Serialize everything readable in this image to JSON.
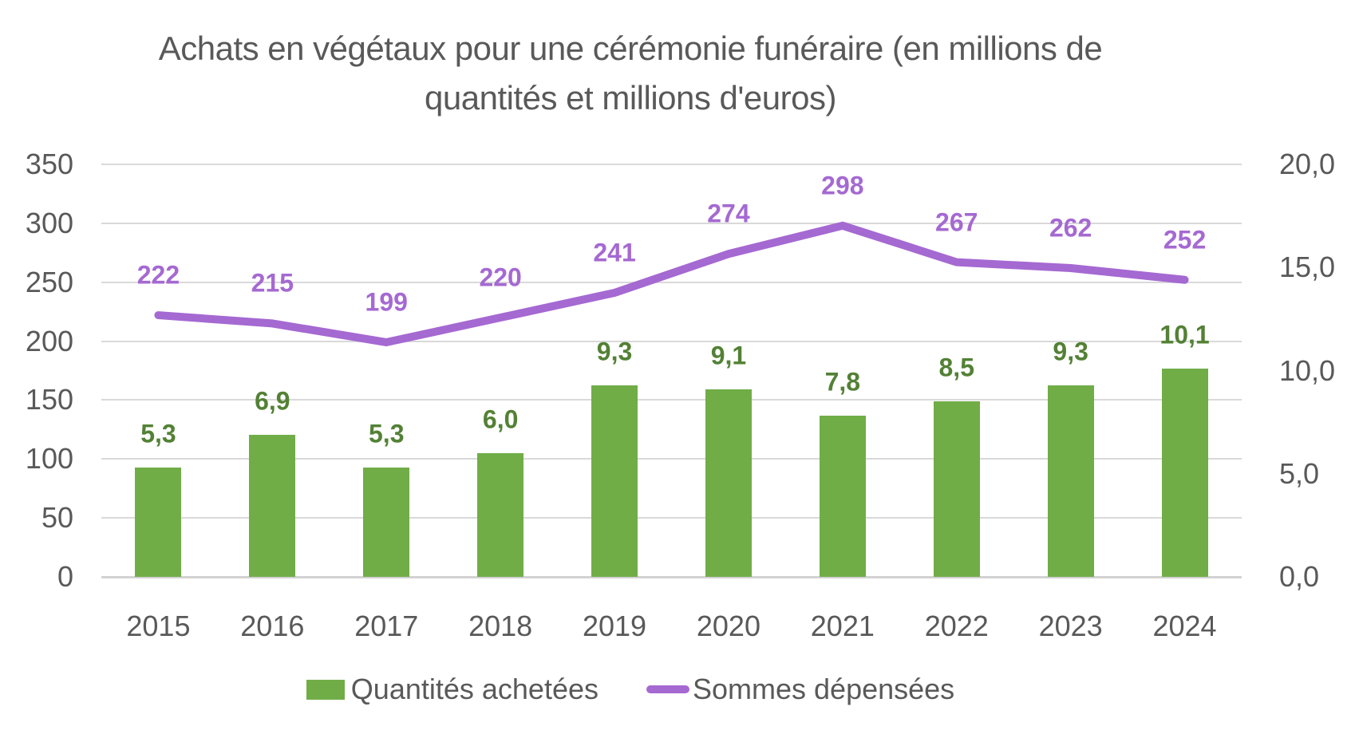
{
  "chart": {
    "title_line1": "Achats en végétaux pour une cérémonie funéraire (en millions de",
    "title_line2": "quantités et millions d'euros)"
  },
  "colors": {
    "bar_green": "#70AD47",
    "bar_label_green": "#538135",
    "line_purple": "#A569D2",
    "axis_text": "#595959",
    "gridline": "#D9D9D9",
    "axis_line": "#D2D2D2",
    "background": "#FFFFFF"
  },
  "chart_data": {
    "type": "combo_bar_line",
    "title": "Achats en végétaux pour une cérémonie funéraire (en millions de quantités et millions d'euros)",
    "categories": [
      "2015",
      "2016",
      "2017",
      "2018",
      "2019",
      "2020",
      "2021",
      "2022",
      "2023",
      "2024"
    ],
    "series": [
      {
        "name": "Quantités achetées",
        "type": "bar",
        "axis": "right",
        "color": "#70AD47",
        "label_color": "#538135",
        "values": [
          5.3,
          6.9,
          5.3,
          6.0,
          9.3,
          9.1,
          7.8,
          8.5,
          9.3,
          10.1
        ],
        "labels": [
          "5,3",
          "6,9",
          "5,3",
          "6,0",
          "9,3",
          "9,1",
          "7,8",
          "8,5",
          "9,3",
          "10,1"
        ]
      },
      {
        "name": "Sommes dépensées",
        "type": "line",
        "axis": "left",
        "color": "#A569D2",
        "label_color": "#A569D2",
        "values": [
          222,
          215,
          199,
          220,
          241,
          274,
          298,
          267,
          262,
          252
        ],
        "labels": [
          "222",
          "215",
          "199",
          "220",
          "241",
          "274",
          "298",
          "267",
          "262",
          "252"
        ]
      }
    ],
    "left_axis": {
      "min": 0,
      "max": 350,
      "step": 50,
      "ticks": [
        "0",
        "50",
        "100",
        "150",
        "200",
        "250",
        "300",
        "350"
      ]
    },
    "right_axis": {
      "min": 0,
      "max": 20,
      "step": 5,
      "ticks": [
        "0,0",
        "5,0",
        "10,0",
        "15,0",
        "20,0"
      ]
    },
    "grid": true,
    "legend_position": "bottom"
  }
}
